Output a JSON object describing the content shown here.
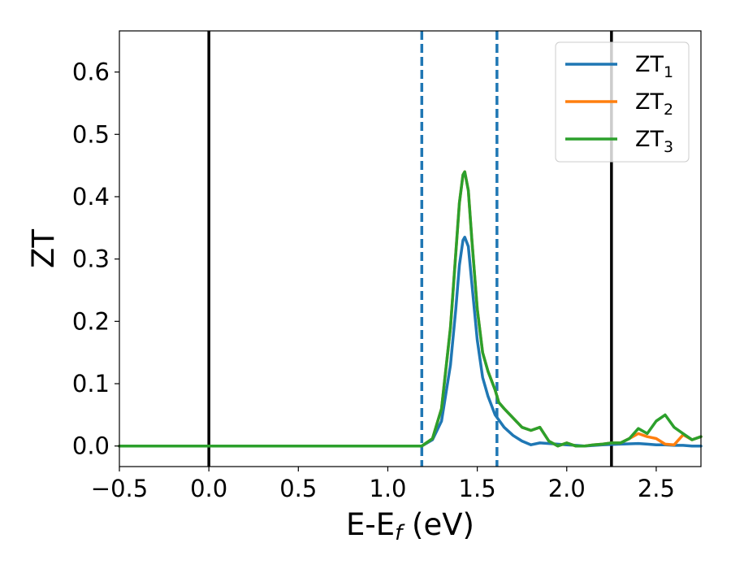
{
  "chart_data": {
    "type": "line",
    "xlabel": "E-E",
    "xlabel_sub": "f",
    "xlabel_unit": " (eV)",
    "ylabel": "ZT",
    "xlim": [
      -0.5,
      2.75
    ],
    "ylim": [
      -0.033,
      0.666
    ],
    "grid": false,
    "legend_placement": "top-right",
    "xticks": [
      {
        "value": -0.5,
        "label": "−0.5"
      },
      {
        "value": 0.0,
        "label": "0.0"
      },
      {
        "value": 0.5,
        "label": "0.5"
      },
      {
        "value": 1.0,
        "label": "1.0"
      },
      {
        "value": 1.5,
        "label": "1.5"
      },
      {
        "value": 2.0,
        "label": "2.0"
      },
      {
        "value": 2.5,
        "label": "2.5"
      }
    ],
    "yticks": [
      {
        "value": 0.0,
        "label": "0.0"
      },
      {
        "value": 0.1,
        "label": "0.1"
      },
      {
        "value": 0.2,
        "label": "0.2"
      },
      {
        "value": 0.3,
        "label": "0.3"
      },
      {
        "value": 0.4,
        "label": "0.4"
      },
      {
        "value": 0.5,
        "label": "0.5"
      },
      {
        "value": 0.6,
        "label": "0.6"
      }
    ],
    "vlines": [
      {
        "x": 0.0,
        "style": "solid",
        "color": "#000000"
      },
      {
        "x": 2.25,
        "style": "solid",
        "color": "#000000"
      },
      {
        "x": 1.19,
        "style": "dashed",
        "color": "#1f77b4"
      },
      {
        "x": 1.61,
        "style": "dashed",
        "color": "#1f77b4"
      }
    ],
    "series": [
      {
        "name": "ZT",
        "sub": "1",
        "color": "#1f77b4",
        "x": [
          -0.5,
          1.0,
          1.19,
          1.25,
          1.3,
          1.35,
          1.38,
          1.4,
          1.42,
          1.43,
          1.45,
          1.47,
          1.5,
          1.53,
          1.56,
          1.6,
          1.65,
          1.7,
          1.75,
          1.8,
          1.85,
          1.9,
          2.0,
          2.05,
          2.1,
          2.2,
          2.3,
          2.4,
          2.45,
          2.5,
          2.55,
          2.6,
          2.65,
          2.7,
          2.75
        ],
        "y": [
          0.0,
          0.0,
          0.0,
          0.01,
          0.04,
          0.13,
          0.22,
          0.29,
          0.33,
          0.335,
          0.32,
          0.26,
          0.17,
          0.11,
          0.08,
          0.05,
          0.03,
          0.017,
          0.008,
          0.002,
          0.005,
          0.004,
          0.002,
          0.001,
          0.0,
          0.002,
          0.003,
          0.004,
          0.003,
          0.002,
          0.002,
          0.001,
          0.001,
          0.0,
          0.0
        ]
      },
      {
        "name": "ZT",
        "sub": "2",
        "color": "#ff7f0e",
        "x": [
          -0.5,
          1.0,
          1.19,
          1.25,
          1.3,
          1.35,
          1.38,
          1.4,
          1.42,
          1.43,
          1.45,
          1.47,
          1.5,
          1.53,
          1.56,
          1.6,
          1.62,
          1.65,
          1.7,
          1.75,
          1.8,
          1.85,
          1.9,
          1.95,
          2.0,
          2.05,
          2.1,
          2.15,
          2.2,
          2.25,
          2.3,
          2.35,
          2.4,
          2.45,
          2.5,
          2.55,
          2.6,
          2.65,
          2.7,
          2.75
        ],
        "y": [
          0.0,
          0.0,
          0.0,
          0.012,
          0.06,
          0.19,
          0.31,
          0.39,
          0.435,
          0.44,
          0.41,
          0.33,
          0.22,
          0.15,
          0.12,
          0.09,
          0.07,
          0.06,
          0.045,
          0.03,
          0.025,
          0.03,
          0.008,
          0.0,
          0.005,
          0.0,
          0.0,
          0.002,
          0.003,
          0.005,
          0.005,
          0.012,
          0.02,
          0.015,
          0.012,
          0.003,
          0.002,
          0.018,
          0.01,
          0.015
        ]
      },
      {
        "name": "ZT",
        "sub": "3",
        "color": "#2ca02c",
        "x": [
          -0.5,
          1.0,
          1.19,
          1.25,
          1.3,
          1.35,
          1.38,
          1.4,
          1.42,
          1.43,
          1.45,
          1.47,
          1.5,
          1.53,
          1.56,
          1.6,
          1.62,
          1.65,
          1.7,
          1.75,
          1.8,
          1.85,
          1.9,
          1.95,
          2.0,
          2.05,
          2.1,
          2.15,
          2.2,
          2.25,
          2.3,
          2.35,
          2.4,
          2.45,
          2.5,
          2.55,
          2.6,
          2.65,
          2.7,
          2.75
        ],
        "y": [
          0.0,
          0.0,
          0.0,
          0.012,
          0.06,
          0.19,
          0.31,
          0.39,
          0.435,
          0.44,
          0.41,
          0.33,
          0.22,
          0.15,
          0.12,
          0.09,
          0.07,
          0.06,
          0.045,
          0.03,
          0.025,
          0.03,
          0.008,
          0.0,
          0.005,
          0.0,
          0.0,
          0.002,
          0.003,
          0.005,
          0.005,
          0.012,
          0.028,
          0.02,
          0.04,
          0.05,
          0.03,
          0.02,
          0.01,
          0.015
        ]
      }
    ]
  }
}
